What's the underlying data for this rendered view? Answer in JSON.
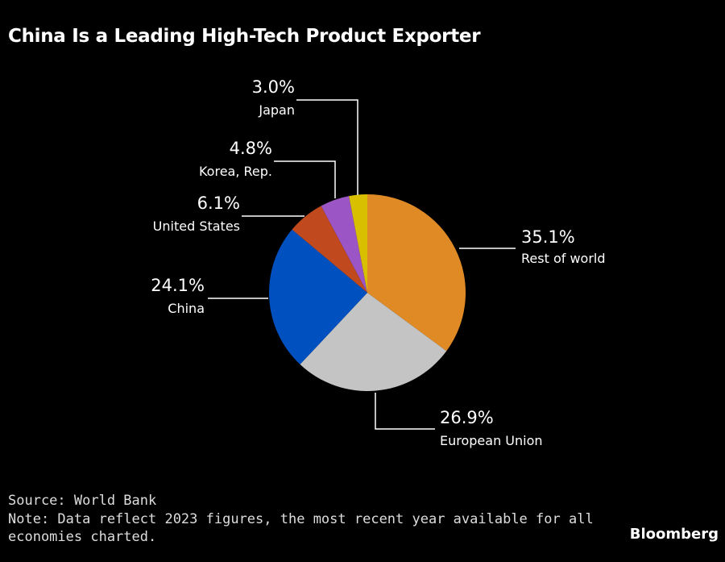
{
  "title": "China Is a Leading High-Tech Product Exporter",
  "chart_data": {
    "type": "pie",
    "title": "China Is a Leading High-Tech Product Exporter",
    "slices": [
      {
        "label": "Rest of world",
        "value": 35.1,
        "display": "35.1%",
        "color": "#E08A25"
      },
      {
        "label": "European Union",
        "value": 26.9,
        "display": "26.9%",
        "color": "#C4C4C4"
      },
      {
        "label": "China",
        "value": 24.1,
        "display": "24.1%",
        "color": "#0050C0"
      },
      {
        "label": "United States",
        "value": 6.1,
        "display": "6.1%",
        "color": "#C04A1E"
      },
      {
        "label": "Korea, Rep.",
        "value": 4.8,
        "display": "4.8%",
        "color": "#9B55C4"
      },
      {
        "label": "Japan",
        "value": 3.0,
        "display": "3.0%",
        "color": "#D8C000"
      }
    ],
    "start": "top, clockwise"
  },
  "footer": {
    "source": "Source: World Bank",
    "note_line1": "Note: Data reflect 2023 figures, the most recent year available for all",
    "note_line2": "economies charted.",
    "brand": "Bloomberg"
  }
}
